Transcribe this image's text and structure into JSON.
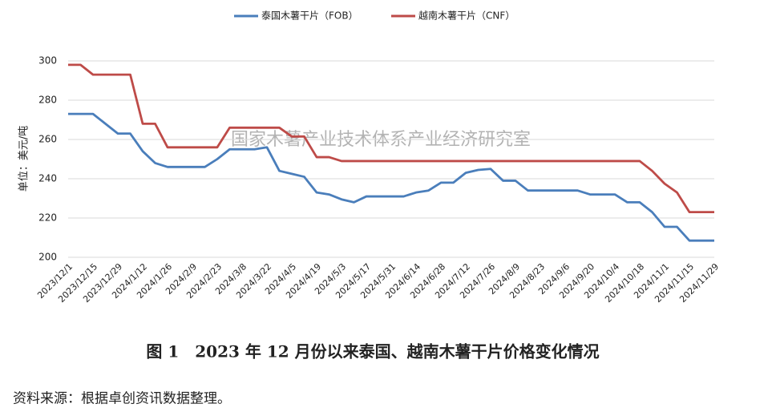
{
  "chart_data": {
    "type": "line",
    "title": "图 1　2023 年 12 月份以来泰国、越南木薯干片价格变化情况",
    "ylabel": "单位：美元/吨",
    "watermark": "国家木薯产业技术体系产业经济研究室",
    "source": "资料来源：根据卓创资讯数据整理。",
    "categories": [
      "2023/12/1",
      null,
      "2023/12/15",
      null,
      "2023/12/29",
      null,
      "2024/1/12",
      null,
      "2024/1/26",
      null,
      "2024/2/9",
      null,
      "2024/2/23",
      null,
      "2024/3/8",
      null,
      "2024/3/22",
      null,
      "2024/4/5",
      null,
      "2024/4/19",
      null,
      "2024/5/3",
      null,
      "2024/5/17",
      null,
      "2024/5/31",
      null,
      "2024/6/14",
      null,
      "2024/6/28",
      null,
      "2024/7/12",
      null,
      "2024/7/26",
      null,
      "2024/8/9",
      null,
      "2024/8/23",
      null,
      "2024/9/6",
      null,
      "2024/9/20",
      null,
      "2024/10/4",
      null,
      "2024/10/18",
      null,
      "2024/11/1",
      null,
      "2024/11/15",
      null,
      "2024/11/29"
    ],
    "series": [
      {
        "name": "泰国木薯干片（FOB）",
        "color": "#4a7ebb",
        "values": [
          273,
          273,
          273,
          268,
          263,
          263,
          254,
          248,
          246,
          246,
          246,
          246,
          250,
          255,
          255,
          255,
          256,
          244,
          242.5,
          241,
          233,
          232,
          229.5,
          228,
          231,
          231,
          231,
          231,
          233,
          234,
          238,
          238,
          243,
          244.5,
          245,
          239,
          239,
          234,
          234,
          234,
          234,
          234,
          232,
          232,
          232,
          228,
          228,
          223,
          215.5,
          215.5,
          208.5,
          208.5,
          208.5
        ]
      },
      {
        "name": "越南木薯干片（CNF）",
        "color": "#be4b48",
        "values": [
          298,
          298,
          293,
          293,
          293,
          293,
          268,
          268,
          256,
          256,
          256,
          256,
          256,
          266,
          266,
          266,
          266,
          266,
          261.5,
          261.5,
          251,
          251,
          249,
          249,
          249,
          249,
          249,
          249,
          249,
          249,
          249,
          249,
          249,
          249,
          249,
          249,
          249,
          249,
          249,
          249,
          249,
          249,
          249,
          249,
          249,
          249,
          249,
          244,
          237.5,
          233,
          223,
          223,
          223
        ]
      }
    ],
    "ylim": [
      200,
      300
    ],
    "yticks": [
      200,
      220,
      240,
      260,
      280,
      300
    ],
    "grid": true,
    "legend": "top"
  }
}
